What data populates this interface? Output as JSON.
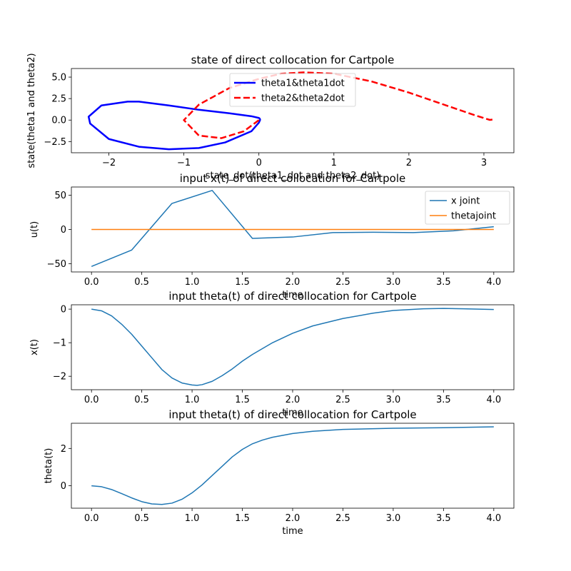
{
  "chart_data": [
    {
      "type": "line",
      "title": "state of direct collocation for Cartpole",
      "xlabel": "state_dot(theta1_dot and theta2_dot)",
      "ylabel": "state(theta1 and theta2)",
      "xlim": [
        -2.5,
        3.4
      ],
      "ylim": [
        -3.8,
        6.0
      ],
      "xticks": [
        -2,
        -1,
        0,
        1,
        2,
        3
      ],
      "xtick_labels": [
        "−2",
        "−1",
        "0",
        "1",
        "2",
        "3"
      ],
      "yticks": [
        -2.5,
        0.0,
        2.5,
        5.0
      ],
      "ytick_labels": [
        "−2.5",
        "0.0",
        "2.5",
        "5.0"
      ],
      "legend": "upper-center",
      "series": [
        {
          "name": "theta1&theta1dot",
          "color": "#0000ff",
          "style": "solid",
          "points": [
            [
              0.02,
              0.1
            ],
            [
              0.0,
              0.25
            ],
            [
              -0.1,
              0.45
            ],
            [
              -0.4,
              0.8
            ],
            [
              -0.8,
              1.2
            ],
            [
              -1.2,
              1.7
            ],
            [
              -1.6,
              2.15
            ],
            [
              -1.75,
              2.15
            ],
            [
              -2.1,
              1.7
            ],
            [
              -2.27,
              0.4
            ],
            [
              -2.25,
              -0.4
            ],
            [
              -2.0,
              -2.2
            ],
            [
              -1.6,
              -3.1
            ],
            [
              -1.2,
              -3.4
            ],
            [
              -0.8,
              -3.25
            ],
            [
              -0.45,
              -2.6
            ],
            [
              -0.1,
              -1.3
            ],
            [
              0.0,
              -0.3
            ],
            [
              0.02,
              0.1
            ]
          ]
        },
        {
          "name": "theta2&theta2dot",
          "color": "#ff0000",
          "style": "dashed",
          "points": [
            [
              0.0,
              0.0
            ],
            [
              -0.2,
              -1.3
            ],
            [
              -0.5,
              -2.1
            ],
            [
              -0.8,
              -1.8
            ],
            [
              -1.0,
              0.0
            ],
            [
              -0.8,
              1.8
            ],
            [
              -0.4,
              3.7
            ],
            [
              0.0,
              4.8
            ],
            [
              0.3,
              5.4
            ],
            [
              0.6,
              5.55
            ],
            [
              1.0,
              5.4
            ],
            [
              1.5,
              4.5
            ],
            [
              2.0,
              3.2
            ],
            [
              2.5,
              1.7
            ],
            [
              2.9,
              0.5
            ],
            [
              3.08,
              0.02
            ],
            [
              3.14,
              0.1
            ]
          ]
        }
      ]
    },
    {
      "type": "line",
      "title": "input x(t) of direct collocation for Cartpole",
      "xlabel": "time",
      "ylabel": "u(t)",
      "xlim": [
        -0.2,
        4.2
      ],
      "ylim": [
        -62,
        62
      ],
      "xticks": [
        0.0,
        0.5,
        1.0,
        1.5,
        2.0,
        2.5,
        3.0,
        3.5,
        4.0
      ],
      "xtick_labels": [
        "0.0",
        "0.5",
        "1.0",
        "1.5",
        "2.0",
        "2.5",
        "3.0",
        "3.5",
        "4.0"
      ],
      "yticks": [
        -50,
        0,
        50
      ],
      "ytick_labels": [
        "−50",
        "0",
        "50"
      ],
      "legend": "top-right",
      "series": [
        {
          "name": "x joint",
          "color": "#1f77b4",
          "style": "solid",
          "points": [
            [
              0.0,
              -54
            ],
            [
              0.4,
              -30
            ],
            [
              0.8,
              38
            ],
            [
              1.2,
              57
            ],
            [
              1.6,
              -13
            ],
            [
              2.0,
              -11
            ],
            [
              2.4,
              -4.5
            ],
            [
              2.8,
              -4
            ],
            [
              3.2,
              -4.5
            ],
            [
              3.6,
              -2
            ],
            [
              4.0,
              4
            ]
          ]
        },
        {
          "name": "thetajoint",
          "color": "#ff7f0e",
          "style": "solid",
          "points": [
            [
              0.0,
              0
            ],
            [
              4.0,
              0
            ]
          ]
        }
      ]
    },
    {
      "type": "line",
      "title": "input theta(t) of direct collocation for Cartpole",
      "xlabel": "time",
      "ylabel": "x(t)",
      "xlim": [
        -0.2,
        4.2
      ],
      "ylim": [
        -2.4,
        0.13
      ],
      "xticks": [
        0.0,
        0.5,
        1.0,
        1.5,
        2.0,
        2.5,
        3.0,
        3.5,
        4.0
      ],
      "xtick_labels": [
        "0.0",
        "0.5",
        "1.0",
        "1.5",
        "2.0",
        "2.5",
        "3.0",
        "3.5",
        "4.0"
      ],
      "yticks": [
        -2,
        -1,
        0
      ],
      "ytick_labels": [
        "−2",
        "−1",
        "0"
      ],
      "legend": "none",
      "series": [
        {
          "name": "",
          "color": "#1f77b4",
          "style": "solid",
          "points": [
            [
              0.0,
              0.0
            ],
            [
              0.1,
              -0.05
            ],
            [
              0.2,
              -0.2
            ],
            [
              0.3,
              -0.45
            ],
            [
              0.4,
              -0.75
            ],
            [
              0.5,
              -1.1
            ],
            [
              0.6,
              -1.45
            ],
            [
              0.7,
              -1.8
            ],
            [
              0.8,
              -2.05
            ],
            [
              0.9,
              -2.2
            ],
            [
              1.0,
              -2.26
            ],
            [
              1.05,
              -2.27
            ],
            [
              1.1,
              -2.25
            ],
            [
              1.2,
              -2.15
            ],
            [
              1.3,
              -1.98
            ],
            [
              1.4,
              -1.78
            ],
            [
              1.5,
              -1.55
            ],
            [
              1.6,
              -1.35
            ],
            [
              1.8,
              -1.0
            ],
            [
              2.0,
              -0.72
            ],
            [
              2.2,
              -0.5
            ],
            [
              2.5,
              -0.28
            ],
            [
              2.8,
              -0.12
            ],
            [
              3.0,
              -0.04
            ],
            [
              3.3,
              0.01
            ],
            [
              3.5,
              0.02
            ],
            [
              3.7,
              0.01
            ],
            [
              4.0,
              -0.01
            ]
          ]
        }
      ]
    },
    {
      "type": "line",
      "title": "input theta(t) of direct collocation for Cartpole",
      "xlabel": "time",
      "ylabel": "theta(t)",
      "xlim": [
        -0.2,
        4.2
      ],
      "ylim": [
        -1.2,
        3.35
      ],
      "xticks": [
        0.0,
        0.5,
        1.0,
        1.5,
        2.0,
        2.5,
        3.0,
        3.5,
        4.0
      ],
      "xtick_labels": [
        "0.0",
        "0.5",
        "1.0",
        "1.5",
        "2.0",
        "2.5",
        "3.0",
        "3.5",
        "4.0"
      ],
      "yticks": [
        0,
        2
      ],
      "ytick_labels": [
        "0",
        "2"
      ],
      "legend": "none",
      "series": [
        {
          "name": "",
          "color": "#1f77b4",
          "style": "solid",
          "points": [
            [
              0.0,
              0.0
            ],
            [
              0.1,
              -0.05
            ],
            [
              0.2,
              -0.2
            ],
            [
              0.3,
              -0.42
            ],
            [
              0.4,
              -0.65
            ],
            [
              0.5,
              -0.85
            ],
            [
              0.6,
              -0.97
            ],
            [
              0.7,
              -1.0
            ],
            [
              0.8,
              -0.93
            ],
            [
              0.9,
              -0.72
            ],
            [
              1.0,
              -0.38
            ],
            [
              1.1,
              0.05
            ],
            [
              1.2,
              0.55
            ],
            [
              1.3,
              1.05
            ],
            [
              1.4,
              1.55
            ],
            [
              1.5,
              1.95
            ],
            [
              1.6,
              2.25
            ],
            [
              1.7,
              2.45
            ],
            [
              1.8,
              2.6
            ],
            [
              2.0,
              2.8
            ],
            [
              2.2,
              2.92
            ],
            [
              2.5,
              3.02
            ],
            [
              3.0,
              3.08
            ],
            [
              3.5,
              3.11
            ],
            [
              4.0,
              3.16
            ]
          ]
        }
      ]
    }
  ]
}
